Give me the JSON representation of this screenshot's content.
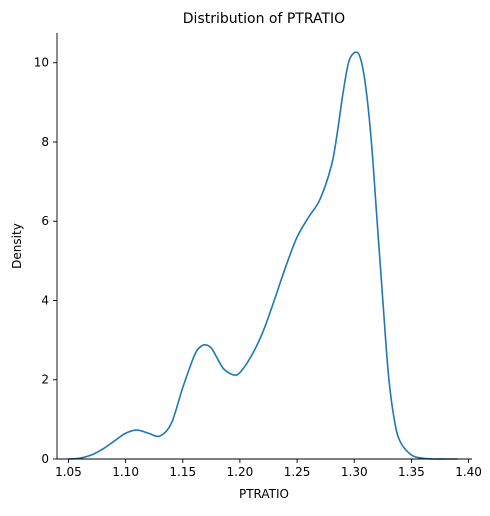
{
  "chart_data": {
    "type": "line",
    "title": "Distribution of PTRATIO",
    "xlabel": "PTRATIO",
    "ylabel": "Density",
    "xlim": [
      1.04,
      1.403
    ],
    "ylim": [
      0,
      10.75
    ],
    "grid": false,
    "legend": "none",
    "x_ticks": [
      "1.05",
      "1.10",
      "1.15",
      "1.20",
      "1.25",
      "1.30",
      "1.35",
      "1.40"
    ],
    "y_ticks": [
      "0",
      "2",
      "4",
      "6",
      "8",
      "10"
    ],
    "series": [
      {
        "color": "#1f77b4",
        "x": [
          1.05,
          1.06,
          1.07,
          1.08,
          1.09,
          1.1,
          1.11,
          1.12,
          1.13,
          1.14,
          1.15,
          1.16,
          1.165,
          1.17,
          1.175,
          1.18,
          1.185,
          1.19,
          1.195,
          1.2,
          1.21,
          1.22,
          1.23,
          1.24,
          1.25,
          1.26,
          1.27,
          1.28,
          1.285,
          1.29,
          1.295,
          1.3,
          1.305,
          1.31,
          1.315,
          1.32,
          1.325,
          1.33,
          1.335,
          1.34,
          1.35,
          1.36,
          1.37,
          1.38,
          1.39
        ],
        "y": [
          0.0,
          0.02,
          0.1,
          0.25,
          0.45,
          0.65,
          0.73,
          0.65,
          0.58,
          0.9,
          1.8,
          2.6,
          2.82,
          2.88,
          2.8,
          2.55,
          2.3,
          2.18,
          2.12,
          2.18,
          2.6,
          3.2,
          4.0,
          4.85,
          5.6,
          6.1,
          6.55,
          7.4,
          8.2,
          9.2,
          10.0,
          10.25,
          10.15,
          9.4,
          8.0,
          6.0,
          4.0,
          2.1,
          1.0,
          0.45,
          0.1,
          0.02,
          0.0,
          0.0,
          0.0
        ]
      }
    ]
  }
}
